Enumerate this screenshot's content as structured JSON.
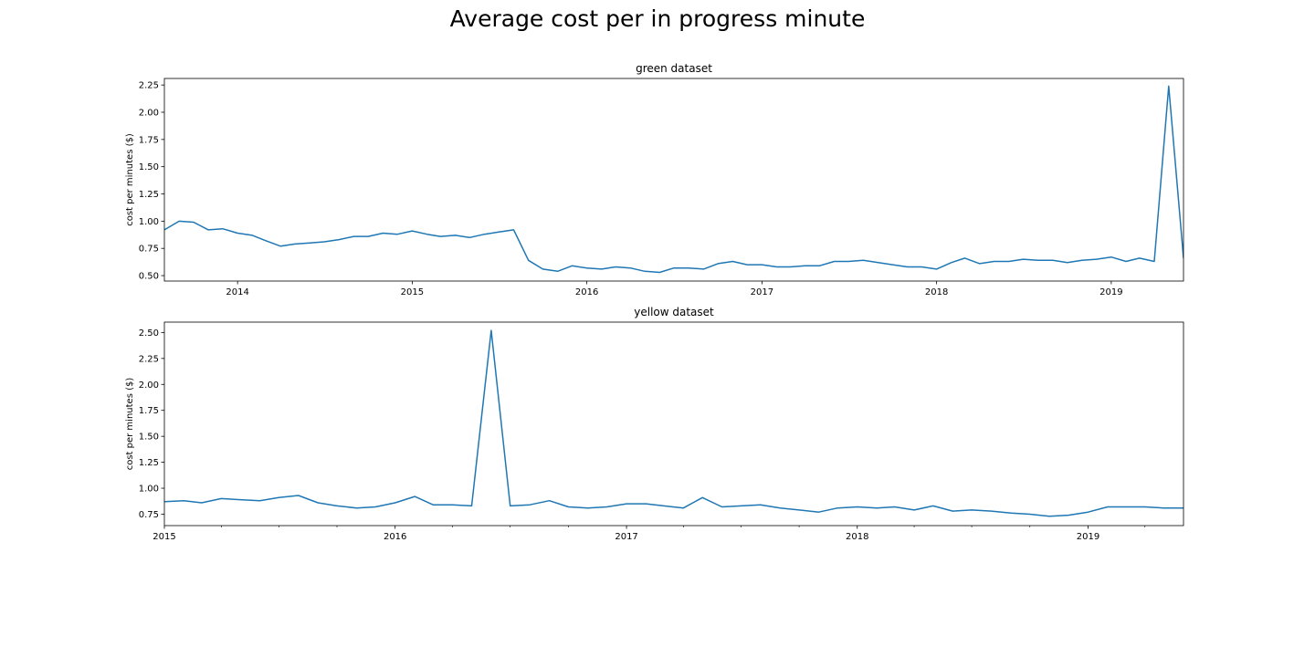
{
  "figure": {
    "title": "Average cost per in progress minute"
  },
  "chart_data": [
    {
      "type": "line",
      "title": "green dataset",
      "xlabel": "",
      "ylabel": "cost per minutes ($)",
      "xlim": [
        "2013-08-01",
        "2019-06-01"
      ],
      "ylim": [
        0.45,
        2.31
      ],
      "yticks": [
        0.5,
        0.75,
        1.0,
        1.25,
        1.5,
        1.75,
        2.0,
        2.25
      ],
      "ytick_labels": [
        "0.50",
        "0.75",
        "1.00",
        "1.25",
        "1.50",
        "1.75",
        "2.00",
        "2.25"
      ],
      "xticks": [
        "2014-01-01",
        "2015-01-01",
        "2016-01-01",
        "2017-01-01",
        "2018-01-01",
        "2019-01-01"
      ],
      "xtick_labels": [
        "2014",
        "2015",
        "2016",
        "2017",
        "2018",
        "2019"
      ],
      "minor_xticks": false,
      "color": "#1f77b4",
      "grid": false,
      "x": [
        "2013-08-01",
        "2013-09-01",
        "2013-10-01",
        "2013-11-01",
        "2013-12-01",
        "2014-01-01",
        "2014-02-01",
        "2014-03-01",
        "2014-04-01",
        "2014-05-01",
        "2014-06-01",
        "2014-07-01",
        "2014-08-01",
        "2014-09-01",
        "2014-10-01",
        "2014-11-01",
        "2014-12-01",
        "2015-01-01",
        "2015-02-01",
        "2015-03-01",
        "2015-04-01",
        "2015-05-01",
        "2015-06-01",
        "2015-07-01",
        "2015-08-01",
        "2015-09-01",
        "2015-10-01",
        "2015-11-01",
        "2015-12-01",
        "2016-01-01",
        "2016-02-01",
        "2016-03-01",
        "2016-04-01",
        "2016-05-01",
        "2016-06-01",
        "2016-07-01",
        "2016-08-01",
        "2016-09-01",
        "2016-10-01",
        "2016-11-01",
        "2016-12-01",
        "2017-01-01",
        "2017-02-01",
        "2017-03-01",
        "2017-04-01",
        "2017-05-01",
        "2017-06-01",
        "2017-07-01",
        "2017-08-01",
        "2017-09-01",
        "2017-10-01",
        "2017-11-01",
        "2017-12-01",
        "2018-01-01",
        "2018-02-01",
        "2018-03-01",
        "2018-04-01",
        "2018-05-01",
        "2018-06-01",
        "2018-07-01",
        "2018-08-01",
        "2018-09-01",
        "2018-10-01",
        "2018-11-01",
        "2018-12-01",
        "2019-01-01",
        "2019-02-01",
        "2019-03-01",
        "2019-04-01",
        "2019-05-01",
        "2019-06-01"
      ],
      "y": [
        0.92,
        1.0,
        0.99,
        0.92,
        0.93,
        0.89,
        0.87,
        0.82,
        0.77,
        0.79,
        0.8,
        0.81,
        0.83,
        0.86,
        0.86,
        0.89,
        0.88,
        0.91,
        0.88,
        0.86,
        0.87,
        0.85,
        0.88,
        0.9,
        0.92,
        0.64,
        0.56,
        0.54,
        0.59,
        0.57,
        0.56,
        0.58,
        0.57,
        0.54,
        0.53,
        0.57,
        0.57,
        0.56,
        0.61,
        0.63,
        0.6,
        0.6,
        0.58,
        0.58,
        0.59,
        0.59,
        0.63,
        0.63,
        0.64,
        0.62,
        0.6,
        0.58,
        0.58,
        0.56,
        0.62,
        0.66,
        0.61,
        0.63,
        0.63,
        0.65,
        0.64,
        0.64,
        0.62,
        0.64,
        0.65,
        0.67,
        0.63,
        0.66,
        0.63,
        2.24,
        0.66
      ]
    },
    {
      "type": "line",
      "title": "yellow dataset",
      "xlabel": "",
      "ylabel": "cost per minutes ($)",
      "xlim": [
        "2015-01-01",
        "2019-06-01"
      ],
      "ylim": [
        0.64,
        2.6
      ],
      "yticks": [
        0.75,
        1.0,
        1.25,
        1.5,
        1.75,
        2.0,
        2.25,
        2.5
      ],
      "ytick_labels": [
        "0.75",
        "1.00",
        "1.25",
        "1.50",
        "1.75",
        "2.00",
        "2.25",
        "2.50"
      ],
      "xticks": [
        "2015-01-01",
        "2016-01-01",
        "2017-01-01",
        "2018-01-01",
        "2019-01-01"
      ],
      "xtick_labels": [
        "2015",
        "2016",
        "2017",
        "2018",
        "2019"
      ],
      "minor_xticks": true,
      "color": "#1f77b4",
      "grid": false,
      "x": [
        "2015-01-01",
        "2015-02-01",
        "2015-03-01",
        "2015-04-01",
        "2015-05-01",
        "2015-06-01",
        "2015-07-01",
        "2015-08-01",
        "2015-09-01",
        "2015-10-01",
        "2015-11-01",
        "2015-12-01",
        "2016-01-01",
        "2016-02-01",
        "2016-03-01",
        "2016-04-01",
        "2016-05-01",
        "2016-06-01",
        "2016-07-01",
        "2016-08-01",
        "2016-09-01",
        "2016-10-01",
        "2016-11-01",
        "2016-12-01",
        "2017-01-01",
        "2017-02-01",
        "2017-03-01",
        "2017-04-01",
        "2017-05-01",
        "2017-06-01",
        "2017-07-01",
        "2017-08-01",
        "2017-09-01",
        "2017-10-01",
        "2017-11-01",
        "2017-12-01",
        "2018-01-01",
        "2018-02-01",
        "2018-03-01",
        "2018-04-01",
        "2018-05-01",
        "2018-06-01",
        "2018-07-01",
        "2018-08-01",
        "2018-09-01",
        "2018-10-01",
        "2018-11-01",
        "2018-12-01",
        "2019-01-01",
        "2019-02-01",
        "2019-03-01",
        "2019-04-01",
        "2019-05-01",
        "2019-06-01"
      ],
      "y": [
        0.87,
        0.88,
        0.86,
        0.9,
        0.89,
        0.88,
        0.91,
        0.93,
        0.86,
        0.83,
        0.81,
        0.82,
        0.86,
        0.92,
        0.84,
        0.84,
        0.83,
        2.52,
        0.83,
        0.84,
        0.88,
        0.82,
        0.81,
        0.82,
        0.85,
        0.85,
        0.83,
        0.81,
        0.91,
        0.82,
        0.83,
        0.84,
        0.81,
        0.79,
        0.77,
        0.81,
        0.82,
        0.81,
        0.82,
        0.79,
        0.83,
        0.78,
        0.79,
        0.78,
        0.76,
        0.75,
        0.73,
        0.74,
        0.77,
        0.82,
        0.82,
        0.82,
        0.81,
        0.81
      ]
    }
  ]
}
